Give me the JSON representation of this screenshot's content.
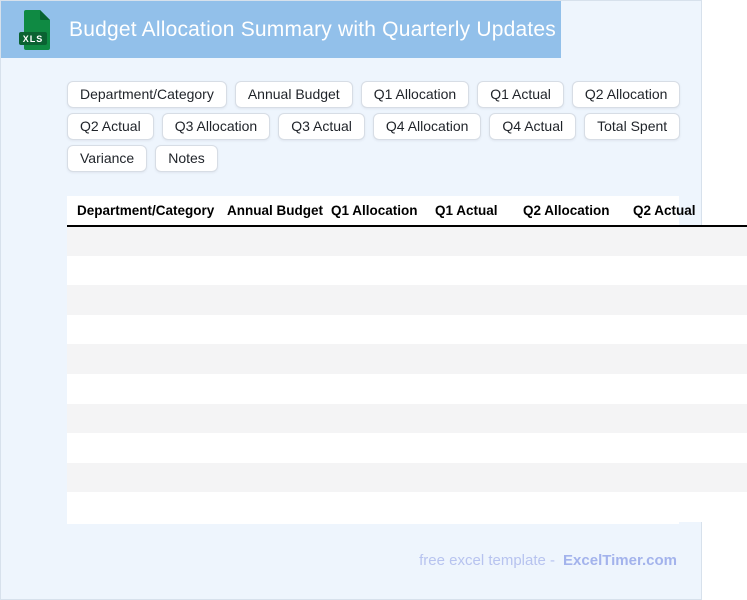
{
  "header": {
    "title": "Budget Allocation Summary with Quarterly Updates",
    "file_badge": "XLS"
  },
  "chips": [
    [
      "Department/Category",
      "Annual Budget",
      "Q1 Allocation",
      "Q1 Actual",
      "Q2 Allocation"
    ],
    [
      "Q2 Actual",
      "Q3 Allocation",
      "Q3 Actual",
      "Q4 Allocation",
      "Q4 Actual",
      "Total Spent"
    ],
    [
      "Variance",
      "Notes"
    ]
  ],
  "table": {
    "columns": [
      "Department/Category",
      "Annual Budget",
      "Q1 Allocation",
      "Q1 Actual",
      "Q2 Allocation",
      "Q2 Actual"
    ],
    "row_count": 10,
    "rows_are_empty": true
  },
  "footer": {
    "prefix": "free excel template -",
    "brand": "ExcelTimer.com"
  },
  "colors": {
    "titlebar": "#92c0ea",
    "page_bg": "#eef5fd",
    "stripe": "#f4f4f5",
    "chip_border": "#d7dde5",
    "header_rule": "#000000",
    "footer_text": "#b7c3ef",
    "footer_brand": "#a3b3ec",
    "icon_green": "#0f8a43",
    "icon_green_dark": "#0a6232"
  }
}
